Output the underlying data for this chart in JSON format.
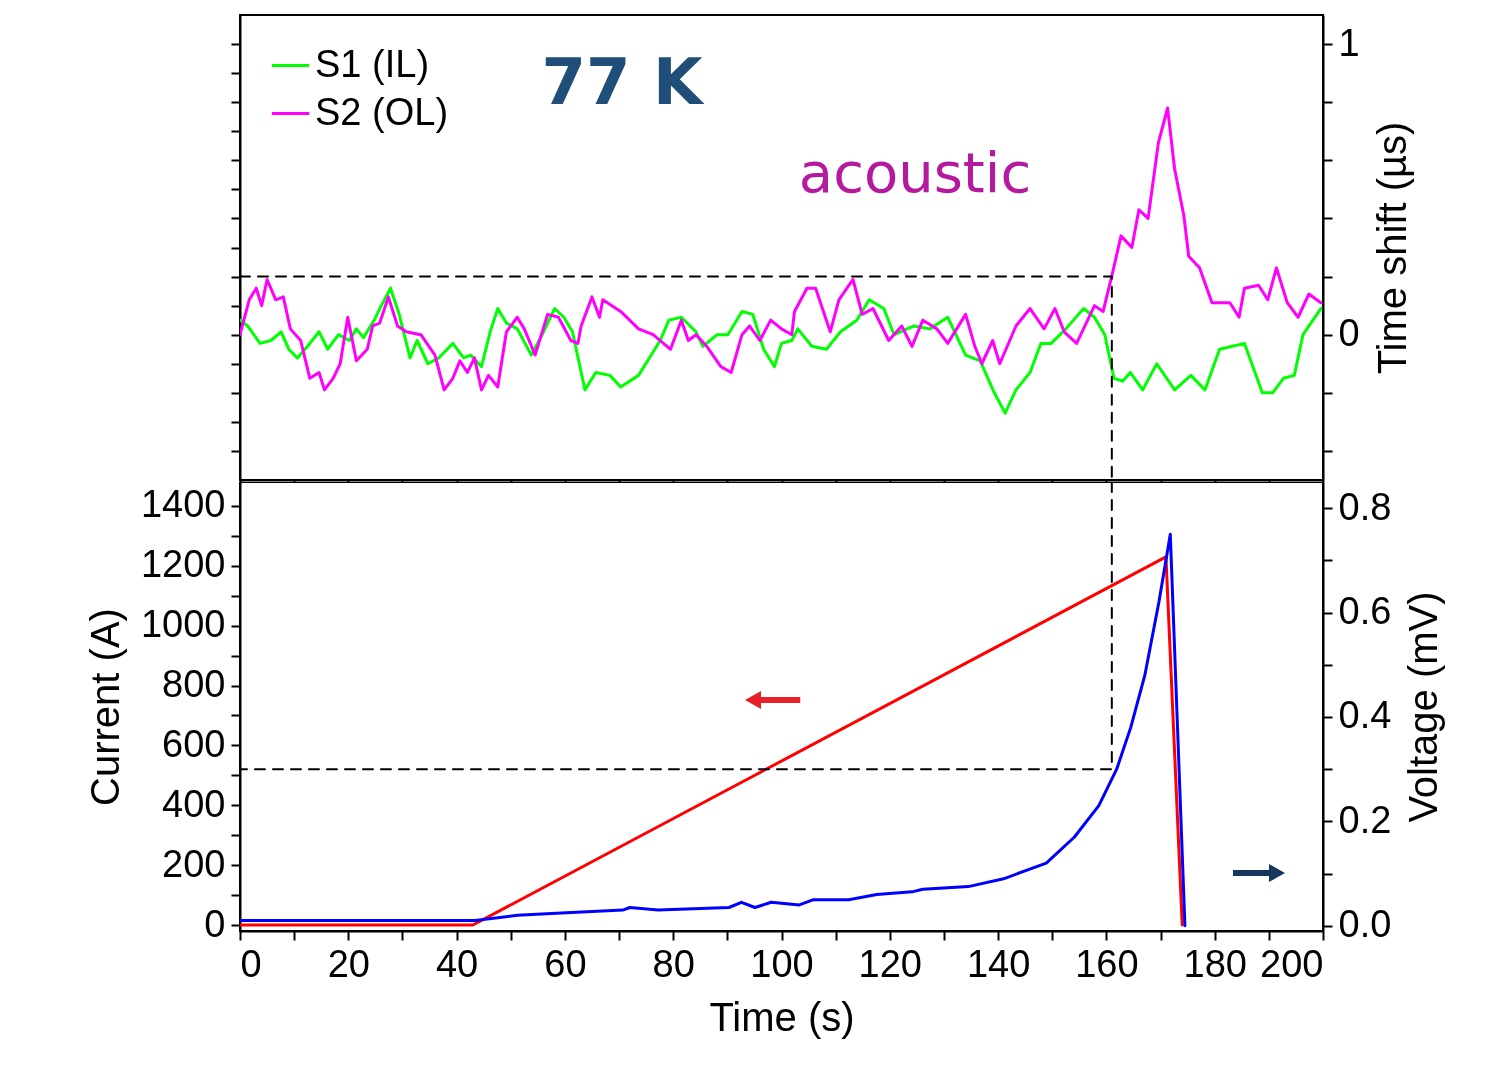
{
  "chart_data": [
    {
      "type": "line",
      "legend": "top left",
      "tick_labels": "y",
      "ylabel": "Time shift (µs)",
      "annotations": [
        "77 K",
        "acoustic"
      ],
      "xlim": [
        0,
        200
      ],
      "xticks": [
        0,
        {
          "value": 10,
          "label": null
        },
        20,
        {
          "value": 30,
          "label": null
        },
        40,
        {
          "value": 50,
          "label": null
        },
        60,
        {
          "value": 70,
          "label": null
        },
        80,
        {
          "value": 90,
          "label": null
        },
        100,
        {
          "value": 110,
          "label": null
        },
        120,
        {
          "value": 130,
          "label": null
        },
        140,
        {
          "value": 150,
          "label": null
        },
        160,
        {
          "value": 170,
          "label": null
        },
        180,
        {
          "value": 190,
          "label": null
        },
        200
      ],
      "ylim": [
        -0.5,
        1.1
      ],
      "yticks": [
        {
          "value": -0.4,
          "label": null
        },
        {
          "value": -0.3,
          "label": null
        },
        {
          "value": -0.2,
          "label": null
        },
        {
          "value": -0.1,
          "label": null
        },
        0,
        {
          "value": 0.1,
          "label": null
        },
        {
          "value": 0.2,
          "label": null
        },
        {
          "value": 0.3,
          "label": null
        },
        {
          "value": 0.4,
          "label": null
        },
        {
          "value": 0.5,
          "label": null
        },
        {
          "value": 0.6,
          "label": null
        },
        {
          "value": 0.7,
          "label": null
        },
        {
          "value": 0.8,
          "label": null
        },
        {
          "value": 0.9,
          "label": null
        },
        1
      ],
      "series": [
        {
          "name": "S1 (IL)",
          "color": "#00ff00",
          "x": [
            0,
            1.4,
            3.7,
            5.7,
            7.6,
            9.0,
            10.6,
            12.9,
            14.6,
            16.2,
            18.2,
            20.2,
            21.5,
            22.8,
            24.8,
            26.1,
            27.8,
            29.4,
            31.4,
            32.7,
            34.7,
            36.7,
            39.3,
            41.3,
            42.6,
            44.6,
            46.2,
            47.6,
            49.2,
            51.2,
            53.8,
            55.8,
            58.1,
            59.8,
            61.4,
            63.7,
            65.7,
            68.3,
            70.3,
            73.6,
            75.6,
            77.6,
            79.2,
            81.5,
            84.2,
            85.5,
            88.1,
            90.1,
            92.7,
            94.7,
            96.7,
            98.7,
            100.0,
            101.9,
            103.0,
            105.6,
            108.3,
            110.9,
            113.9,
            116.2,
            118.9,
            120.8,
            124.5,
            127.4,
            130.7,
            134.0,
            136.7,
            139.3,
            141.3,
            143.3,
            145.9,
            147.9,
            149.8,
            152.5,
            155.8,
            157.8,
            159.7,
            161.4,
            163.0,
            164.4,
            166.7,
            169.3,
            172.6,
            175.6,
            178.2,
            180.9,
            185.5,
            188.8,
            190.7,
            192.7,
            194.7,
            196.3,
            199.6
          ],
          "values": [
            0.05,
            0.03,
            -0.03,
            -0.02,
            0.01,
            -0.05,
            -0.08,
            -0.03,
            0.01,
            -0.05,
            0.0,
            -0.02,
            0.02,
            -0.01,
            0.05,
            0.1,
            0.16,
            0.07,
            -0.08,
            -0.02,
            -0.1,
            -0.08,
            -0.03,
            -0.08,
            -0.07,
            -0.11,
            0.01,
            0.09,
            0.04,
            0.02,
            -0.07,
            0.0,
            0.09,
            0.06,
            0.01,
            -0.19,
            -0.13,
            -0.14,
            -0.18,
            -0.14,
            -0.08,
            -0.02,
            0.05,
            0.06,
            0.01,
            -0.04,
            0.0,
            0.0,
            0.08,
            0.07,
            -0.05,
            -0.11,
            -0.03,
            -0.02,
            0.02,
            -0.04,
            -0.05,
            0.01,
            0.05,
            0.12,
            0.09,
            0.0,
            0.03,
            0.02,
            0.06,
            -0.07,
            -0.09,
            -0.2,
            -0.27,
            -0.19,
            -0.13,
            -0.03,
            -0.03,
            0.02,
            0.09,
            0.06,
            0.0,
            -0.15,
            -0.16,
            -0.13,
            -0.19,
            -0.1,
            -0.19,
            -0.14,
            -0.19,
            -0.05,
            -0.03,
            -0.2,
            -0.2,
            -0.15,
            -0.14,
            0.0,
            0.09
          ]
        },
        {
          "name": "S2 (OL)",
          "color": "#ff00ff",
          "x": [
            0,
            1.7,
            3.0,
            4.0,
            5.0,
            6.6,
            8.0,
            9.3,
            11.2,
            12.9,
            14.6,
            15.6,
            17.2,
            18.5,
            19.9,
            21.5,
            23.5,
            24.5,
            25.8,
            27.4,
            29.1,
            30.7,
            33.4,
            36.0,
            37.7,
            39.3,
            40.6,
            42.0,
            43.3,
            44.6,
            45.9,
            47.6,
            49.2,
            51.2,
            52.5,
            54.5,
            56.8,
            58.8,
            61.1,
            62.4,
            63.0,
            65.0,
            66.4,
            67.0,
            70.3,
            73.6,
            76.3,
            78.2,
            79.5,
            81.5,
            82.8,
            84.2,
            86.2,
            88.8,
            90.7,
            92.7,
            94.1,
            96.0,
            98.0,
            100.0,
            101.9,
            102.4,
            104.7,
            106.3,
            109.0,
            110.6,
            113.2,
            114.9,
            116.9,
            119.8,
            122.2,
            124.1,
            126.1,
            128.7,
            130.7,
            134.0,
            135.7,
            137.0,
            139.0,
            140.3,
            143.3,
            145.9,
            148.5,
            150.5,
            152.2,
            154.5,
            157.8,
            159.4,
            161.1,
            162.7,
            164.7,
            166.0,
            167.7,
            169.6,
            171.3,
            172.6,
            174.3,
            175.2,
            177.2,
            179.5,
            182.8,
            184.5,
            185.5,
            188.1,
            189.8,
            191.4,
            193.4,
            195.4,
            197.4,
            199.6
          ],
          "values": [
            0.0,
            0.12,
            0.16,
            0.1,
            0.19,
            0.12,
            0.13,
            0.02,
            -0.02,
            -0.15,
            -0.13,
            -0.19,
            -0.15,
            -0.1,
            0.06,
            -0.09,
            -0.05,
            0.03,
            0.04,
            0.13,
            0.03,
            0.01,
            0.0,
            -0.07,
            -0.19,
            -0.15,
            -0.09,
            -0.13,
            -0.08,
            -0.19,
            -0.14,
            -0.18,
            0.01,
            0.06,
            0.02,
            -0.07,
            0.07,
            0.06,
            -0.02,
            -0.03,
            0.03,
            0.13,
            0.06,
            0.12,
            0.08,
            0.02,
            0.0,
            -0.03,
            -0.05,
            0.05,
            -0.02,
            0.0,
            -0.04,
            -0.11,
            -0.13,
            0.0,
            0.03,
            -0.02,
            0.05,
            0.02,
            0.0,
            0.08,
            0.16,
            0.16,
            0.01,
            0.12,
            0.19,
            0.07,
            0.09,
            -0.02,
            0.03,
            -0.04,
            0.05,
            0.02,
            -0.03,
            0.07,
            -0.04,
            -0.1,
            -0.02,
            -0.1,
            0.03,
            0.09,
            0.02,
            0.09,
            0.01,
            -0.03,
            0.1,
            0.08,
            0.21,
            0.34,
            0.3,
            0.43,
            0.4,
            0.66,
            0.78,
            0.57,
            0.41,
            0.27,
            0.23,
            0.11,
            0.11,
            0.06,
            0.16,
            0.17,
            0.12,
            0.23,
            0.11,
            0.06,
            0.14,
            0.11
          ]
        },
        {
          "color": "#000000",
          "line_style": "dashed",
          "x": [
            0,
            161,
            161
          ],
          "values": [
            0.2,
            0.2,
            -0.5
          ]
        }
      ]
    },
    {
      "type": "line",
      "xlabel": "Time (s)",
      "ylabel": "Current (A)",
      "y2label": "Voltage (mV)",
      "xlim": [
        0,
        200
      ],
      "xticks": [
        0,
        {
          "value": 10,
          "label": null
        },
        20,
        {
          "value": 30,
          "label": null
        },
        40,
        {
          "value": 50,
          "label": null
        },
        60,
        {
          "value": 70,
          "label": null
        },
        80,
        {
          "value": 90,
          "label": null
        },
        100,
        {
          "value": 110,
          "label": null
        },
        120,
        {
          "value": 130,
          "label": null
        },
        140,
        {
          "value": 150,
          "label": null
        },
        160,
        {
          "value": 170,
          "label": null
        },
        180,
        {
          "value": 190,
          "label": null
        },
        200
      ],
      "ylim": [
        -20,
        1480
      ],
      "yticks": [
        0,
        {
          "value": 100,
          "label": null
        },
        200,
        {
          "value": 300,
          "label": null
        },
        400,
        {
          "value": 500,
          "label": null
        },
        600,
        {
          "value": 700,
          "label": null
        },
        800,
        {
          "value": 900,
          "label": null
        },
        1000,
        {
          "value": 1100,
          "label": null
        },
        1200,
        {
          "value": 1300,
          "label": null
        },
        1400
      ],
      "y2lim": [
        -0.01,
        0.85
      ],
      "y2ticks": [
        {
          "value": 0,
          "label": "0.0"
        },
        {
          "value": 0.1,
          "label": null
        },
        0.2,
        {
          "value": 0.3,
          "label": null
        },
        0.4,
        {
          "value": 0.5,
          "label": null
        },
        0.6,
        {
          "value": 0.7,
          "label": null
        },
        0.8
      ],
      "series": [
        {
          "color": "#ff0000",
          "x": [
            0,
            43,
            171,
            174
          ],
          "values": [
            0,
            0,
            1230,
            0
          ]
        },
        {
          "color": "#0000ff",
          "axis": "y2",
          "x": [
            0,
            43.4,
            51.2,
            60.3,
            70.7,
            72.0,
            77.2,
            90.3,
            92.6,
            95.1,
            98.1,
            103.3,
            105.9,
            112.4,
            117.6,
            124.1,
            126.1,
            134.5,
            141.0,
            148.9,
            154.1,
            158.6,
            161.9,
            164.5,
            167.1,
            169.7,
            171.8,
            174.5
          ],
          "values": [
            0.01,
            0.01,
            0.02,
            0.025,
            0.03,
            0.035,
            0.03,
            0.035,
            0.045,
            0.035,
            0.045,
            0.04,
            0.05,
            0.05,
            0.06,
            0.065,
            0.07,
            0.075,
            0.09,
            0.12,
            0.17,
            0.23,
            0.3,
            0.38,
            0.48,
            0.62,
            0.75,
            0
          ]
        },
        {
          "color": "#000000",
          "axis": "y2",
          "line_style": "dashed",
          "x": [
            161,
            161,
            0
          ],
          "values": [
            0.85,
            0.3,
            0.3
          ]
        }
      ]
    }
  ]
}
